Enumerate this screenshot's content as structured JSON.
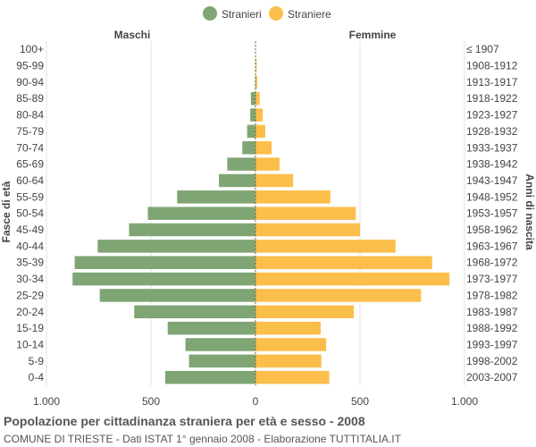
{
  "chart_data": {
    "type": "bar",
    "title": "Popolazione per cittadinanza straniera per età e sesso - 2008",
    "subtitle": "COMUNE DI TRIESTE - Dati ISTAT 1° gennaio 2008 - Elaborazione TUTTITALIA.IT",
    "left_header": "Maschi",
    "right_header": "Femmine",
    "ylabel_left": "Fasce di età",
    "ylabel_right": "Anni di nascita",
    "legend_position": "top",
    "grid": true,
    "xlim": [
      -1000,
      1000
    ],
    "x_ticks": [
      -1000,
      -500,
      0,
      500,
      1000
    ],
    "x_tick_labels": [
      "1.000",
      "500",
      "0",
      "500",
      "1.000"
    ],
    "colors": {
      "males": "#7fa574",
      "females": "#fcbe4a",
      "center_line": "#6b6b3a"
    },
    "categories": [
      "100+",
      "95-99",
      "90-94",
      "85-89",
      "80-84",
      "75-79",
      "70-74",
      "65-69",
      "60-64",
      "55-59",
      "50-54",
      "45-49",
      "40-44",
      "35-39",
      "30-34",
      "25-29",
      "20-24",
      "15-19",
      "10-14",
      "5-9",
      "0-4"
    ],
    "birth_years": [
      "≤ 1907",
      "1908-1912",
      "1913-1917",
      "1918-1922",
      "1923-1927",
      "1928-1932",
      "1933-1937",
      "1938-1942",
      "1943-1947",
      "1948-1952",
      "1953-1957",
      "1958-1962",
      "1963-1967",
      "1968-1972",
      "1973-1977",
      "1978-1982",
      "1983-1987",
      "1988-1992",
      "1993-1997",
      "1998-2002",
      "2003-2007"
    ],
    "series": [
      {
        "name": "Stranieri",
        "values": [
          0,
          0,
          2,
          22,
          25,
          40,
          63,
          135,
          175,
          375,
          515,
          605,
          755,
          865,
          875,
          745,
          580,
          420,
          335,
          318,
          432
        ]
      },
      {
        "name": "Straniere",
        "values": [
          1,
          5,
          8,
          20,
          35,
          47,
          77,
          115,
          180,
          358,
          480,
          500,
          670,
          845,
          928,
          792,
          470,
          312,
          338,
          315,
          353
        ]
      }
    ]
  }
}
